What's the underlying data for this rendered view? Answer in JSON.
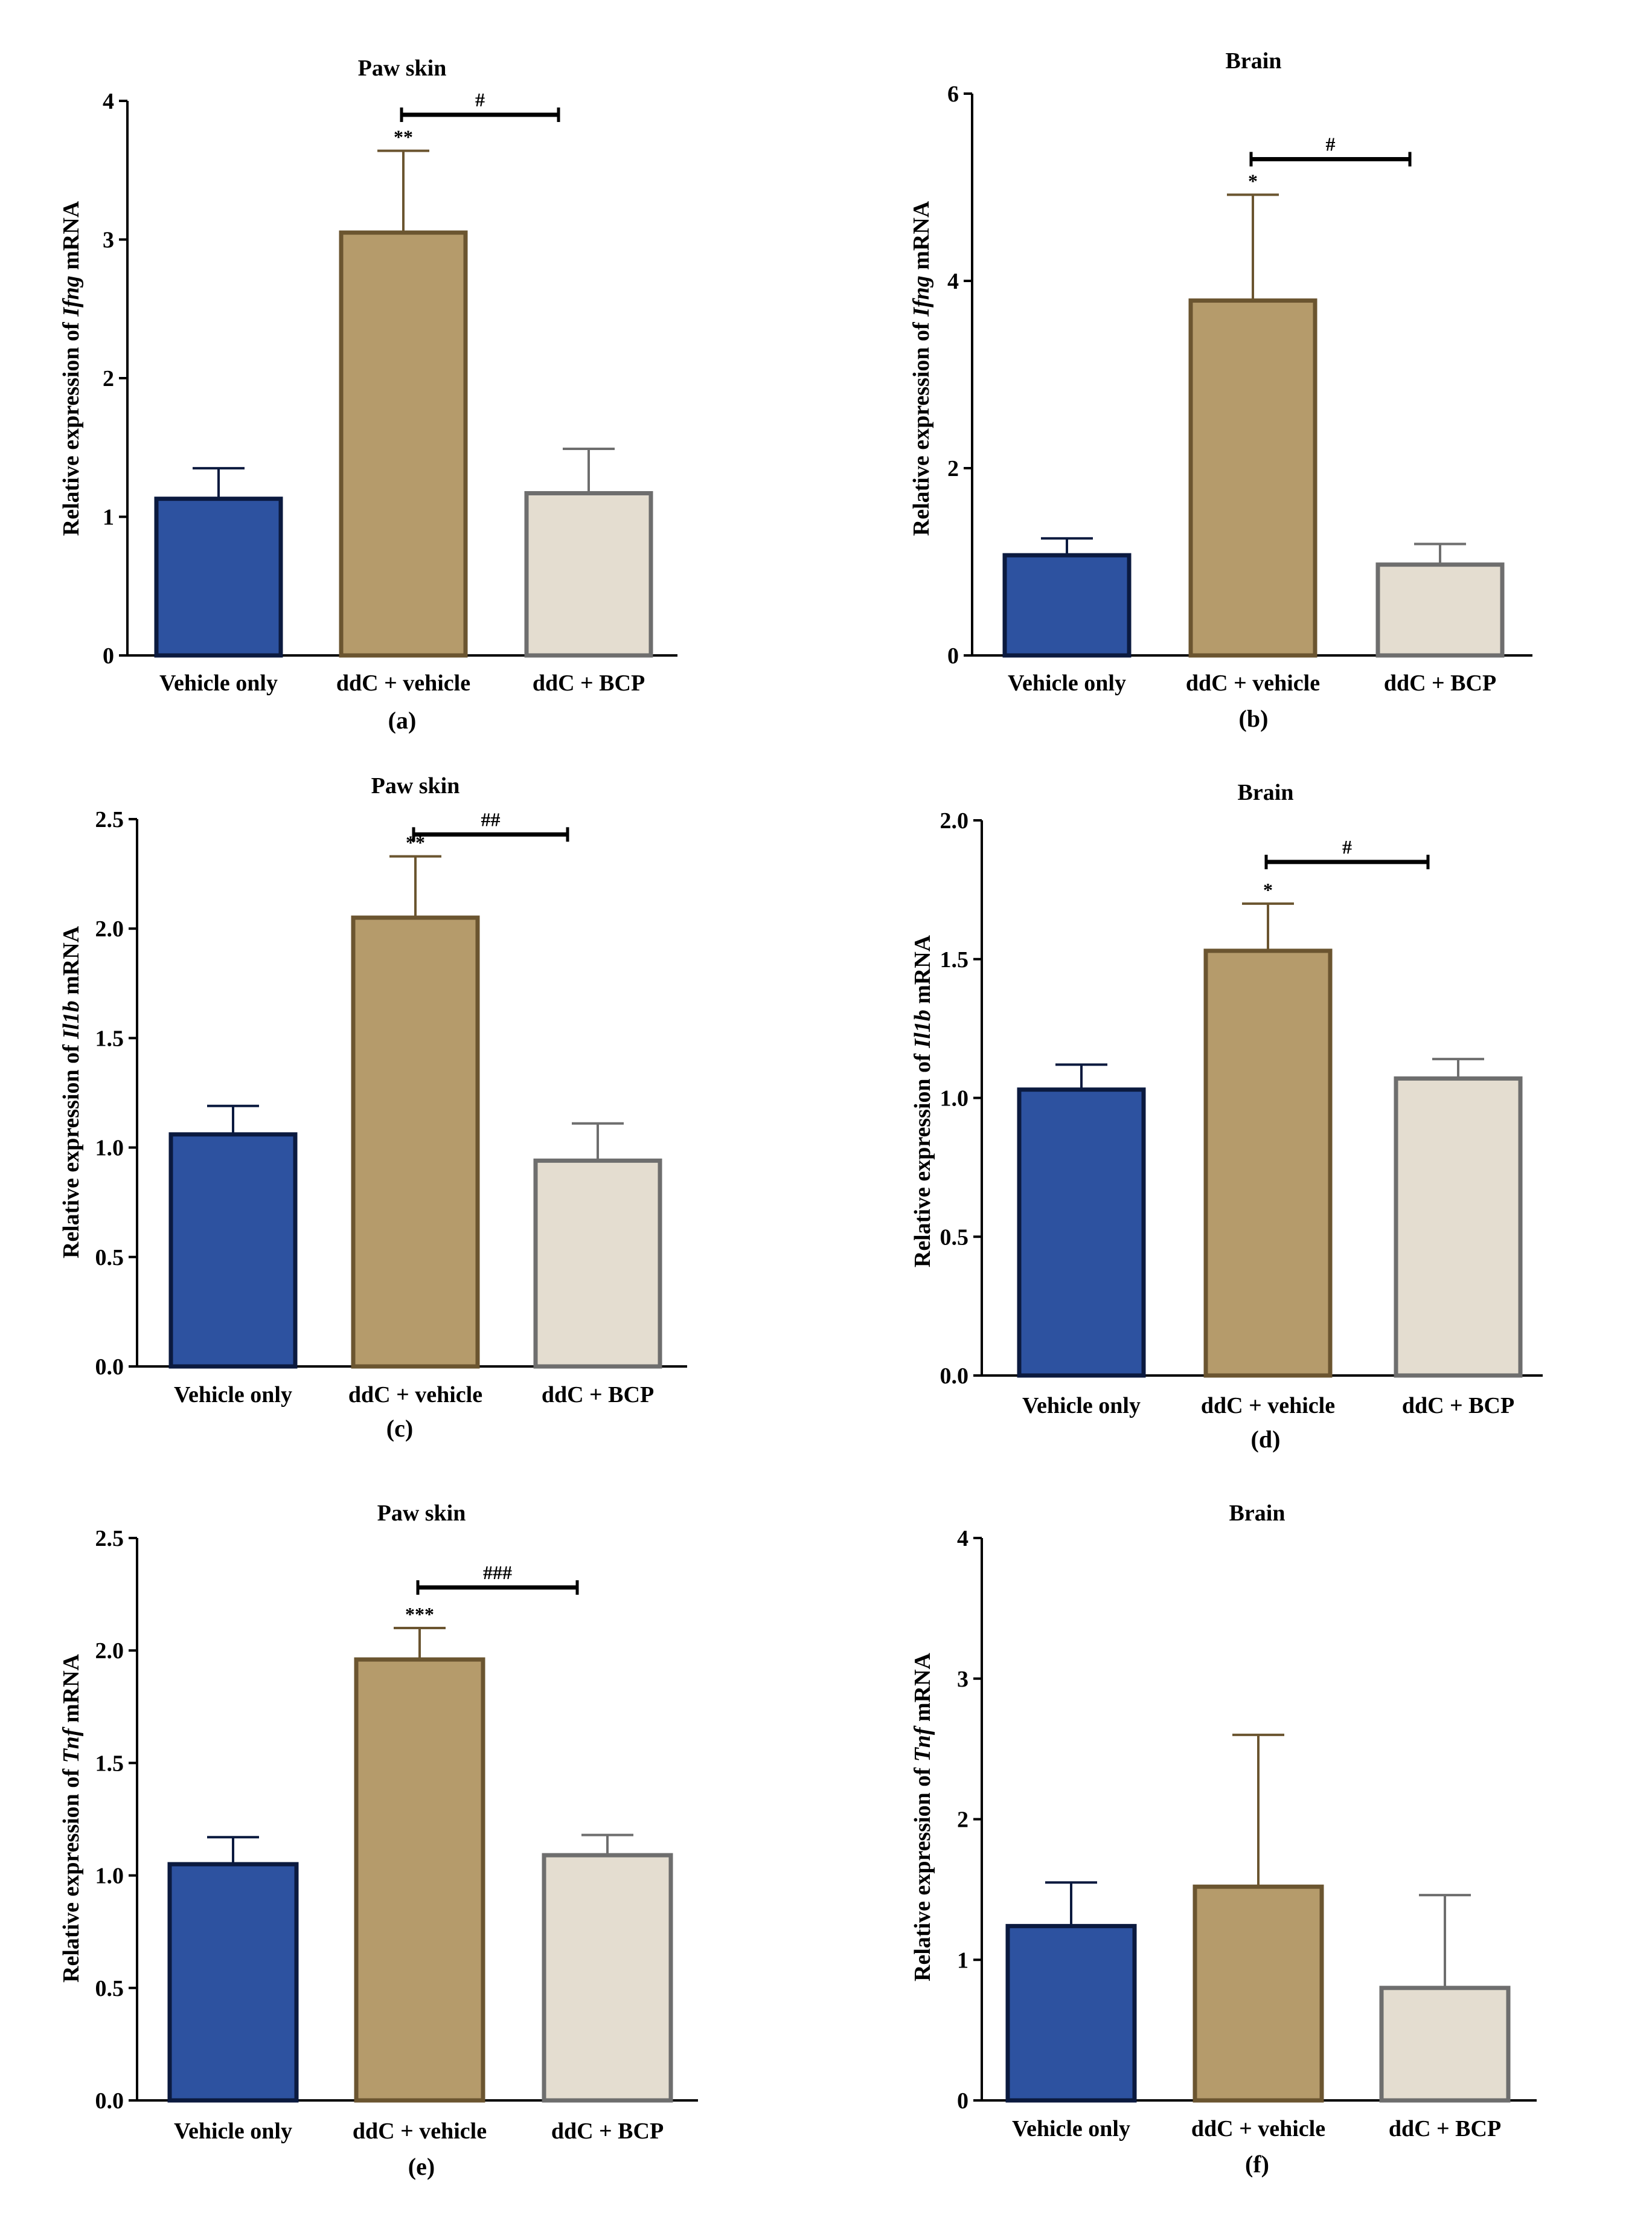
{
  "colors": {
    "Vehicle only": "#2d52a0",
    "ddC + vehicle": "#b59b6b",
    "ddC + BCP": "#e4ddd0",
    "edge_vehicle": "#0b1a3f",
    "edge_ddc": "#6b5530",
    "edge_bcp": "#6e6e6e"
  },
  "chart_data": [
    {
      "type": "bar",
      "panel": "(a)",
      "title": "Paw skin",
      "ylabel_prefix": "Relative expression of ",
      "gene": "Ifng",
      "ylabel_suffix": " mRNA",
      "categories": [
        "Vehicle only",
        "ddC + vehicle",
        "ddC + BCP"
      ],
      "values": [
        1.13,
        3.05,
        1.17
      ],
      "errors": [
        0.22,
        0.59,
        0.32
      ],
      "ylim": [
        0,
        4
      ],
      "yticks": [
        0,
        1,
        2,
        3,
        4
      ],
      "ytick_labels": [
        "0",
        "1",
        "2",
        "3",
        "4"
      ],
      "star_labels": [
        "",
        "**",
        ""
      ],
      "bracket": {
        "from": 1,
        "to": 2,
        "label": "#",
        "y": 3.9
      }
    },
    {
      "type": "bar",
      "panel": "(b)",
      "title": "Brain",
      "ylabel_prefix": "Relative expression of ",
      "gene": "Ifng",
      "ylabel_suffix": " mRNA",
      "categories": [
        "Vehicle only",
        "ddC + vehicle",
        "ddC + BCP"
      ],
      "values": [
        1.07,
        3.79,
        0.97
      ],
      "errors": [
        0.18,
        1.13,
        0.22
      ],
      "ylim": [
        0,
        6
      ],
      "yticks": [
        0,
        2,
        4,
        6
      ],
      "ytick_labels": [
        "0",
        "2",
        "4",
        "6"
      ],
      "star_labels": [
        "",
        "*",
        ""
      ],
      "bracket": {
        "from": 1,
        "to": 2,
        "label": "#",
        "y": 5.3
      }
    },
    {
      "type": "bar",
      "panel": "(c)",
      "title": "Paw skin",
      "ylabel_prefix": "Relative expression of ",
      "gene": "Il1b",
      "ylabel_suffix": " mRNA",
      "categories": [
        "Vehicle only",
        "ddC + vehicle",
        "ddC + BCP"
      ],
      "values": [
        1.06,
        2.05,
        0.94
      ],
      "errors": [
        0.13,
        0.28,
        0.17
      ],
      "ylim": [
        0,
        2.5
      ],
      "yticks": [
        0,
        0.5,
        1,
        1.5,
        2,
        2.5
      ],
      "ytick_labels": [
        "0.0",
        "0.5",
        "1.0",
        "1.5",
        "2.0",
        "2.5"
      ],
      "star_labels": [
        "",
        "**",
        ""
      ],
      "bracket": {
        "from": 1,
        "to": 2,
        "label": "##",
        "y": 2.43
      }
    },
    {
      "type": "bar",
      "panel": "(d)",
      "title": "Brain",
      "ylabel_prefix": "Relative expression of ",
      "gene": "Il1b",
      "ylabel_suffix": " mRNA",
      "categories": [
        "Vehicle only",
        "ddC + vehicle",
        "ddC + BCP"
      ],
      "values": [
        1.03,
        1.53,
        1.07
      ],
      "errors": [
        0.09,
        0.17,
        0.07
      ],
      "ylim": [
        0,
        2.0
      ],
      "yticks": [
        0,
        0.5,
        1,
        1.5,
        2
      ],
      "ytick_labels": [
        "0.0",
        "0.5",
        "1.0",
        "1.5",
        "2.0"
      ],
      "star_labels": [
        "",
        "*",
        ""
      ],
      "bracket": {
        "from": 1,
        "to": 2,
        "label": "#",
        "y": 1.85
      }
    },
    {
      "type": "bar",
      "panel": "(e)",
      "title": "Paw skin",
      "ylabel_prefix": "Relative expression of ",
      "gene": "Tnf",
      "ylabel_suffix": " mRNA",
      "categories": [
        "Vehicle only",
        "ddC + vehicle",
        "ddC + BCP"
      ],
      "values": [
        1.05,
        1.96,
        1.09
      ],
      "errors": [
        0.12,
        0.14,
        0.09
      ],
      "ylim": [
        0,
        2.5
      ],
      "yticks": [
        0,
        0.5,
        1,
        1.5,
        2,
        2.5
      ],
      "ytick_labels": [
        "0.0",
        "0.5",
        "1.0",
        "1.5",
        "2.0",
        "2.5"
      ],
      "star_labels": [
        "",
        "***",
        ""
      ],
      "bracket": {
        "from": 1,
        "to": 2,
        "label": "###",
        "y": 2.28
      }
    },
    {
      "type": "bar",
      "panel": "(f)",
      "title": "Brain",
      "ylabel_prefix": "Relative expression of ",
      "gene": "Tnf",
      "ylabel_suffix": " mRNA",
      "categories": [
        "Vehicle only",
        "ddC + vehicle",
        "ddC + BCP"
      ],
      "values": [
        1.24,
        1.52,
        0.8
      ],
      "errors": [
        0.31,
        1.08,
        0.66
      ],
      "ylim": [
        0,
        4
      ],
      "yticks": [
        0,
        1,
        2,
        3,
        4
      ],
      "ytick_labels": [
        "0",
        "1",
        "2",
        "3",
        "4"
      ],
      "star_labels": [
        "",
        "",
        ""
      ],
      "bracket": null
    }
  ]
}
